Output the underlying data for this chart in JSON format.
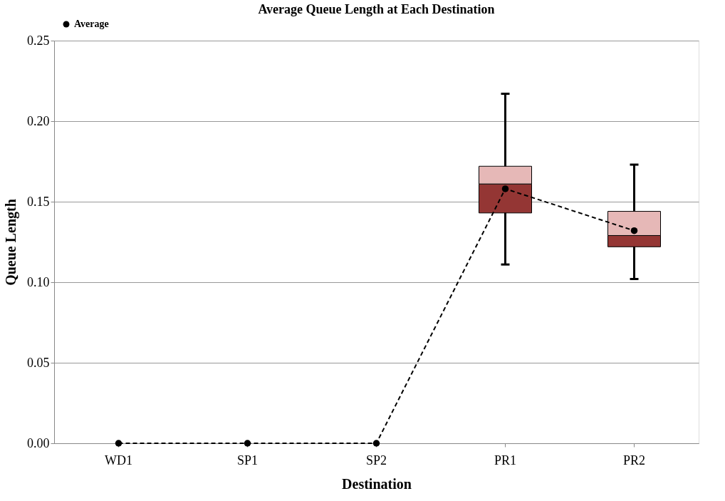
{
  "chart_data": {
    "type": "box",
    "title": "Average Queue Length at Each Destination",
    "xlabel": "Destination",
    "ylabel": "Queue Length",
    "categories": [
      "WD1",
      "SP1",
      "SP2",
      "PR1",
      "PR2"
    ],
    "series": [
      {
        "type": "box",
        "color": "#e6b8b7",
        "colors": [
          null,
          null,
          null,
          "#943634",
          "#943634"
        ],
        "boxes": [
          null,
          null,
          null,
          {
            "low": 0.111,
            "q1": 0.143,
            "median": 0.161,
            "q3": 0.172,
            "high": 0.217
          },
          {
            "low": 0.102,
            "q1": 0.122,
            "median": 0.129,
            "q3": 0.144,
            "high": 0.173
          }
        ]
      },
      {
        "type": "line",
        "name": "Average",
        "color": "#000000",
        "values": [
          0,
          0,
          0,
          0.158,
          0.132
        ],
        "marker": "circle",
        "line_style": "dashed"
      }
    ],
    "ylim": [
      0,
      0.25
    ],
    "yticks": [
      {
        "value": 0,
        "label": "0.00"
      },
      {
        "value": 0.05,
        "label": "0.05"
      },
      {
        "value": 0.1,
        "label": "0.10"
      },
      {
        "value": 0.15,
        "label": "0.15"
      },
      {
        "value": 0.2,
        "label": "0.20"
      },
      {
        "value": 0.25,
        "label": "0.25"
      }
    ],
    "grid": "y",
    "legend": "top left"
  }
}
